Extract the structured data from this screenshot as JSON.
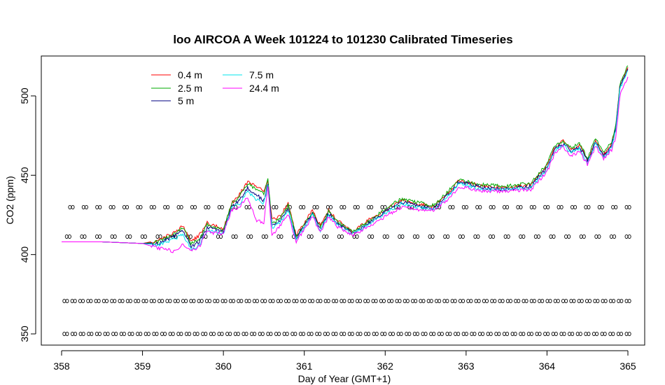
{
  "chart_data": {
    "type": "line",
    "title": "loo AIRCOA A  Week 101224 to 101230  Calibrated Timeseries",
    "xlabel": "Day of Year (GMT+1)",
    "ylabel": "CO2 (ppm)",
    "xlim": [
      358,
      365
    ],
    "ylim": [
      350,
      520
    ],
    "x_ticks": [
      358,
      359,
      360,
      361,
      362,
      363,
      364,
      365
    ],
    "y_ticks": [
      350,
      400,
      450,
      500
    ],
    "grid": false,
    "legend_position": "top-left",
    "x": [
      358.0,
      358.5,
      359.0,
      359.2,
      359.4,
      359.5,
      359.6,
      359.7,
      359.8,
      360.0,
      360.1,
      360.2,
      360.3,
      360.4,
      360.5,
      360.55,
      360.6,
      360.7,
      360.8,
      360.9,
      361.0,
      361.1,
      361.2,
      361.3,
      361.4,
      361.6,
      361.8,
      362.0,
      362.2,
      362.4,
      362.6,
      362.8,
      362.9,
      363.0,
      363.2,
      363.5,
      363.8,
      364.0,
      364.1,
      364.2,
      364.3,
      364.4,
      364.5,
      364.6,
      364.7,
      364.8,
      364.85,
      364.9,
      365.0
    ],
    "series": [
      {
        "name": "0.4 m",
        "color": "#ff0000",
        "values": [
          408,
          408,
          407,
          409,
          414,
          418,
          408,
          412,
          420,
          416,
          432,
          438,
          446,
          443,
          440,
          446,
          422,
          424,
          432,
          412,
          420,
          428,
          418,
          428,
          422,
          414,
          422,
          428,
          434,
          432,
          430,
          440,
          446,
          446,
          443,
          442,
          444,
          456,
          468,
          472,
          466,
          469,
          460,
          472,
          463,
          470,
          480,
          506,
          518
        ]
      },
      {
        "name": "2.5 m",
        "color": "#00aa00",
        "values": [
          408,
          408,
          407,
          408,
          413,
          417,
          407,
          410,
          419,
          415,
          432,
          437,
          445,
          441,
          438,
          447,
          420,
          423,
          431,
          411,
          419,
          427,
          417,
          427,
          421,
          414,
          421,
          429,
          435,
          433,
          431,
          441,
          447,
          446,
          444,
          443,
          445,
          457,
          469,
          471,
          467,
          470,
          461,
          473,
          464,
          471,
          481,
          507,
          519
        ]
      },
      {
        "name": "5 m",
        "color": "#000080",
        "values": [
          408,
          408,
          407,
          407,
          412,
          415,
          405,
          408,
          417,
          414,
          430,
          434,
          442,
          438,
          434,
          445,
          418,
          421,
          429,
          410,
          418,
          426,
          416,
          426,
          420,
          413,
          420,
          427,
          433,
          431,
          429,
          439,
          445,
          445,
          442,
          441,
          443,
          455,
          467,
          470,
          465,
          468,
          459,
          471,
          462,
          469,
          479,
          505,
          517
        ]
      },
      {
        "name": "7.5 m",
        "color": "#00e5ee",
        "values": [
          408,
          408,
          407,
          406,
          410,
          413,
          403,
          406,
          415,
          413,
          429,
          432,
          440,
          435,
          432,
          444,
          417,
          420,
          428,
          409,
          417,
          425,
          415,
          425,
          419,
          413,
          419,
          426,
          432,
          430,
          428,
          438,
          444,
          444,
          441,
          441,
          442,
          454,
          466,
          469,
          464,
          467,
          458,
          470,
          461,
          468,
          478,
          504,
          516
        ]
      },
      {
        "name": "24.4 m",
        "color": "#ff00ff",
        "values": [
          408,
          408,
          407,
          404,
          402,
          406,
          402,
          405,
          414,
          413,
          428,
          430,
          436,
          422,
          420,
          443,
          412,
          418,
          426,
          408,
          416,
          424,
          414,
          424,
          418,
          412,
          418,
          424,
          430,
          428,
          428,
          436,
          442,
          442,
          440,
          440,
          441,
          452,
          464,
          468,
          462,
          465,
          457,
          468,
          460,
          466,
          474,
          500,
          512
        ]
      }
    ]
  }
}
